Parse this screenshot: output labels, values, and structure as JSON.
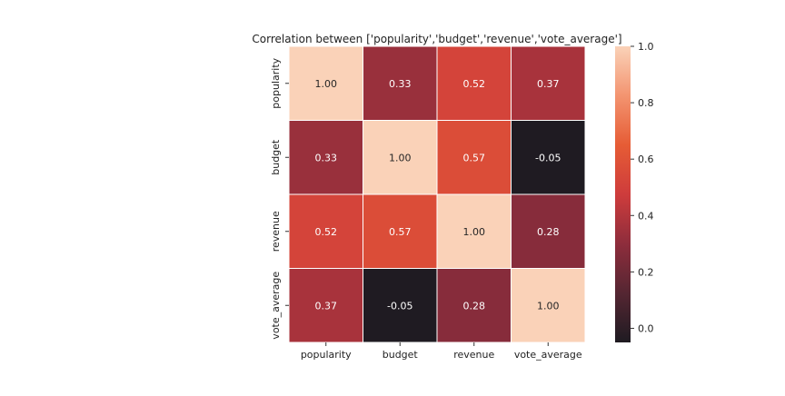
{
  "chart_data": {
    "type": "heatmap",
    "title": "Correlation between ['popularity','budget','revenue','vote_average']",
    "xlabel": "",
    "ylabel": "",
    "x_categories": [
      "popularity",
      "budget",
      "revenue",
      "vote_average"
    ],
    "y_categories": [
      "popularity",
      "budget",
      "revenue",
      "vote_average"
    ],
    "values": [
      [
        1.0,
        0.33,
        0.52,
        0.37
      ],
      [
        0.33,
        1.0,
        0.57,
        -0.05
      ],
      [
        0.52,
        0.57,
        1.0,
        0.28
      ],
      [
        0.37,
        -0.05,
        0.28,
        1.0
      ]
    ],
    "cell_labels": [
      [
        "1.00",
        "0.33",
        "0.52",
        "0.37"
      ],
      [
        "0.33",
        "1.00",
        "0.57",
        "-0.05"
      ],
      [
        "0.52",
        "0.57",
        "1.00",
        "0.28"
      ],
      [
        "0.37",
        "-0.05",
        "0.28",
        "1.00"
      ]
    ],
    "colorbar": {
      "range": [
        -0.05,
        1.0
      ],
      "ticks": [
        0.0,
        0.2,
        0.4,
        0.6,
        0.8,
        1.0
      ],
      "tick_labels": [
        "0.0",
        "0.2",
        "0.4",
        "0.6",
        "0.8",
        "1.0"
      ]
    },
    "colormap": "rocket",
    "colormap_stops": [
      "#1f1b22",
      "#552632",
      "#8e2d3c",
      "#ce3c3c",
      "#e65c35",
      "#f39470",
      "#fad2b8"
    ],
    "grid": false,
    "legend": "colorbar-right"
  }
}
